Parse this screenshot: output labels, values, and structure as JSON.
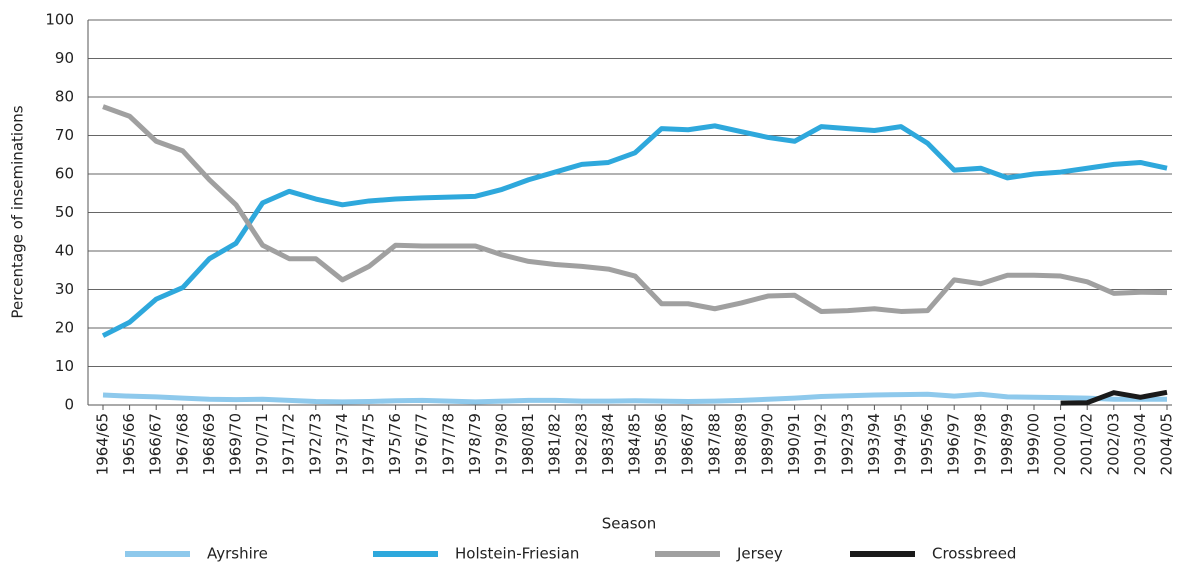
{
  "chart_data": {
    "type": "line",
    "x_label": "Season",
    "y_label": "Percentage of inseminations",
    "categories": [
      "1964/65",
      "1965/66",
      "1966/67",
      "1967/68",
      "1968/69",
      "1969/70",
      "1970/71",
      "1971/72",
      "1972/73",
      "1973/74",
      "1974/75",
      "1975/76",
      "1976/77",
      "1977/78",
      "1978/79",
      "1979/80",
      "1980/81",
      "1981/82",
      "1982/83",
      "1983/84",
      "1984/85",
      "1985/86",
      "1986/87",
      "1987/88",
      "1988/89",
      "1989/90",
      "1990/91",
      "1991/92",
      "1992/93",
      "1993/94",
      "1994/95",
      "1995/96",
      "1996/97",
      "1997/98",
      "1998/99",
      "1999/00",
      "2000/01",
      "2001/02",
      "2002/03",
      "2003/04",
      "2004/05"
    ],
    "series": [
      {
        "name": "Ayrshire",
        "color": "#8ec9ec",
        "values": [
          2.6,
          2.3,
          2.1,
          1.8,
          1.5,
          1.4,
          1.5,
          1.2,
          0.9,
          0.8,
          0.9,
          1.1,
          1.2,
          1.0,
          0.8,
          1.0,
          1.2,
          1.2,
          1.0,
          1.0,
          1.1,
          1.0,
          0.9,
          1.0,
          1.2,
          1.5,
          1.8,
          2.2,
          2.4,
          2.6,
          2.7,
          2.8,
          2.3,
          2.8,
          2.1,
          2.0,
          1.9,
          1.8,
          1.5,
          1.5,
          1.5
        ]
      },
      {
        "name": "Holstein-Friesian",
        "color": "#2ea8dc",
        "values": [
          18,
          21.5,
          27.5,
          30.5,
          38,
          42,
          52.5,
          55.5,
          53.5,
          52,
          53,
          53.5,
          53.8,
          54,
          54.2,
          56,
          58.5,
          60.5,
          62.5,
          63,
          65.5,
          71.8,
          71.5,
          72.5,
          71,
          69.5,
          68.5,
          72.3,
          71.8,
          71.3,
          72.3,
          68,
          61,
          61.5,
          59,
          60,
          60.5,
          61.5,
          62.5,
          63,
          61.5
        ]
      },
      {
        "name": "Jersey",
        "color": "#a0a0a0",
        "values": [
          77.5,
          75,
          68.5,
          66,
          58.5,
          52,
          41.5,
          38,
          38,
          32.5,
          36,
          41.5,
          41.3,
          41.3,
          41.3,
          39,
          37.3,
          36.5,
          36,
          35.3,
          33.5,
          26.3,
          26.3,
          25,
          26.5,
          28.3,
          28.5,
          24.3,
          24.5,
          25,
          24.3,
          24.5,
          32.5,
          31.5,
          33.7,
          33.7,
          33.5,
          32,
          29,
          29.3,
          29.2
        ]
      },
      {
        "name": "Crossbreed",
        "color": "#1a1a1a",
        "values": [
          null,
          null,
          null,
          null,
          null,
          null,
          null,
          null,
          null,
          null,
          null,
          null,
          null,
          null,
          null,
          null,
          null,
          null,
          null,
          null,
          null,
          null,
          null,
          null,
          null,
          null,
          null,
          null,
          null,
          null,
          null,
          null,
          null,
          null,
          null,
          null,
          0.5,
          0.6,
          3.2,
          2.0,
          3.3
        ]
      }
    ],
    "ylim": [
      0,
      100
    ],
    "yticks": [
      0,
      10,
      20,
      30,
      40,
      50,
      60,
      70,
      80,
      90,
      100
    ],
    "grid": true,
    "legend": "bottom"
  }
}
